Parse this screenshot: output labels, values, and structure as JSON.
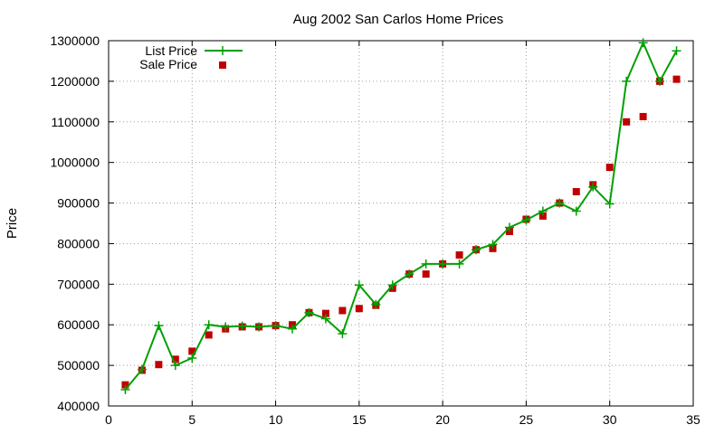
{
  "chart_data": {
    "type": "line",
    "title": "Aug 2002 San Carlos Home Prices",
    "xlabel": "",
    "ylabel": "Price",
    "xlim": [
      0,
      35
    ],
    "ylim": [
      400000,
      1300000
    ],
    "x_ticks": [
      "0",
      "5",
      "10",
      "15",
      "20",
      "25",
      "30",
      "35"
    ],
    "y_ticks": [
      "400000",
      "500000",
      "600000",
      "700000",
      "800000",
      "900000",
      "1000000",
      "1100000",
      "1200000",
      "1300000"
    ],
    "grid": true,
    "legend_position": "top-left",
    "colors": {
      "list_price": "#00a000",
      "sale_price": "#c00000"
    },
    "x": [
      1,
      2,
      3,
      4,
      5,
      6,
      7,
      8,
      9,
      10,
      11,
      12,
      13,
      14,
      15,
      16,
      17,
      18,
      19,
      20,
      21,
      22,
      23,
      24,
      25,
      26,
      27,
      28,
      29,
      30,
      31,
      32,
      33,
      34
    ],
    "series": [
      {
        "name": "List Price",
        "style": "linespoints",
        "values": [
          440000,
          490000,
          598000,
          500000,
          518000,
          600000,
          595000,
          597000,
          595000,
          598000,
          590000,
          630000,
          615000,
          578000,
          698000,
          650000,
          698000,
          725000,
          750000,
          750000,
          750000,
          785000,
          798000,
          840000,
          858000,
          880000,
          900000,
          880000,
          940000,
          898000,
          1200000,
          1295000,
          1200000,
          1275000
        ]
      },
      {
        "name": "Sale Price",
        "style": "points",
        "values": [
          452000,
          488000,
          502000,
          515000,
          535000,
          575000,
          590000,
          595000,
          595000,
          598000,
          600000,
          630000,
          628000,
          635000,
          640000,
          648000,
          690000,
          725000,
          725000,
          750000,
          772000,
          785000,
          788000,
          830000,
          860000,
          868000,
          900000,
          928000,
          945000,
          988000,
          1100000,
          1113000,
          1200000,
          1205000
        ]
      }
    ]
  }
}
